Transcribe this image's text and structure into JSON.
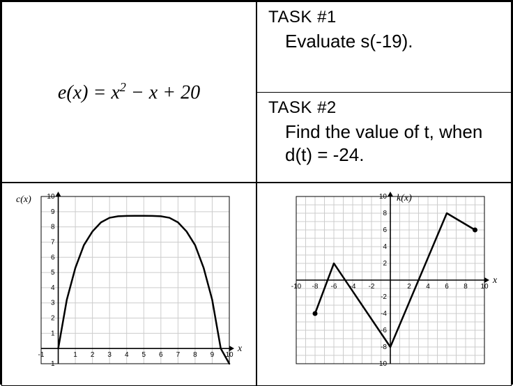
{
  "equation": {
    "lhs": "e(x)",
    "rhs_pre": " = x",
    "rhs_exp": "2",
    "rhs_post": " − x + 20"
  },
  "tasks": {
    "task1": {
      "title": "TASK #1",
      "body": "Evaluate s(-19)."
    },
    "task2": {
      "title": "TASK #2",
      "body": "Find the value of t, when d(t) = -24."
    }
  },
  "chart_c": {
    "title": "c(x)",
    "xaxis_label": "x",
    "xlim": [
      -1,
      10
    ],
    "ylim": [
      -1,
      10
    ],
    "xticks": [
      -1,
      1,
      2,
      3,
      4,
      5,
      6,
      7,
      8,
      9,
      10
    ],
    "yticks": [
      -1,
      1,
      2,
      3,
      4,
      5,
      6,
      7,
      8,
      9,
      10
    ],
    "grid_color": "#cccccc",
    "axis_color": "#000000",
    "curve_color": "#000000",
    "curve_width": 2.5,
    "points": [
      [
        0,
        0
      ],
      [
        0.5,
        3.2
      ],
      [
        1,
        5.3
      ],
      [
        1.5,
        6.8
      ],
      [
        2,
        7.7
      ],
      [
        2.5,
        8.3
      ],
      [
        3,
        8.6
      ],
      [
        3.5,
        8.7
      ],
      [
        4,
        8.72
      ],
      [
        4.5,
        8.73
      ],
      [
        5,
        8.73
      ],
      [
        5.5,
        8.72
      ],
      [
        6,
        8.7
      ],
      [
        6.5,
        8.6
      ],
      [
        7,
        8.3
      ],
      [
        7.5,
        7.7
      ],
      [
        8,
        6.8
      ],
      [
        8.5,
        5.3
      ],
      [
        9,
        3.2
      ],
      [
        9.5,
        0
      ],
      [
        10,
        -1
      ]
    ]
  },
  "chart_k": {
    "title": "k(x)",
    "xaxis_label": "x",
    "xlim": [
      -10,
      10
    ],
    "ylim": [
      -10,
      10
    ],
    "xticks": [
      -10,
      -8,
      -6,
      -4,
      -2,
      2,
      4,
      6,
      8,
      10
    ],
    "yticks": [
      -10,
      -8,
      -6,
      -4,
      -2,
      2,
      4,
      6,
      8,
      10
    ],
    "grid_color": "#cccccc",
    "axis_color": "#000000",
    "curve_color": "#000000",
    "curve_width": 2.5,
    "points": [
      [
        -8,
        -4
      ],
      [
        -6,
        2
      ],
      [
        0,
        -8
      ],
      [
        6,
        8
      ],
      [
        9,
        6
      ]
    ]
  }
}
